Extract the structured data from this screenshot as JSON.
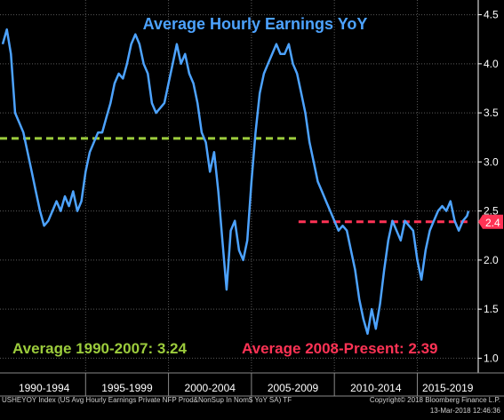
{
  "chart_data": {
    "type": "line",
    "title": "Average Hourly Earnings YoY",
    "ylim": [
      0.85,
      4.65
    ],
    "yticks": [
      1.0,
      1.5,
      2.0,
      2.5,
      3.0,
      3.5,
      4.0,
      4.5
    ],
    "ytick_labels": [
      "1.0",
      "1.5",
      "2.0",
      "2.5",
      "3.0",
      "3.5",
      "4.0",
      "4.5"
    ],
    "x_range": [
      "1990-01",
      "2018-02"
    ],
    "x_bands": [
      {
        "label": "1990-1994",
        "start": "1990-01",
        "end": "1994-12"
      },
      {
        "label": "1995-1999",
        "start": "1995-01",
        "end": "1999-12"
      },
      {
        "label": "2000-2004",
        "start": "2000-01",
        "end": "2004-12"
      },
      {
        "label": "2005-2009",
        "start": "2005-01",
        "end": "2009-12"
      },
      {
        "label": "2010-2014",
        "start": "2010-01",
        "end": "2014-12"
      },
      {
        "label": "2015-2019",
        "start": "2015-01",
        "end": "2018-02"
      }
    ],
    "grid": true,
    "series": [
      {
        "color": "#4da3ff",
        "points": [
          [
            "1990-01",
            4.2
          ],
          [
            "1990-04",
            4.35
          ],
          [
            "1990-07",
            4.1
          ],
          [
            "1990-10",
            3.5
          ],
          [
            "1991-01",
            3.4
          ],
          [
            "1991-04",
            3.3
          ],
          [
            "1991-07",
            3.1
          ],
          [
            "1991-10",
            2.9
          ],
          [
            "1992-01",
            2.7
          ],
          [
            "1992-04",
            2.5
          ],
          [
            "1992-07",
            2.35
          ],
          [
            "1992-10",
            2.4
          ],
          [
            "1993-01",
            2.5
          ],
          [
            "1993-04",
            2.6
          ],
          [
            "1993-07",
            2.5
          ],
          [
            "1993-10",
            2.65
          ],
          [
            "1994-01",
            2.55
          ],
          [
            "1994-04",
            2.7
          ],
          [
            "1994-07",
            2.5
          ],
          [
            "1994-10",
            2.6
          ],
          [
            "1995-01",
            2.9
          ],
          [
            "1995-04",
            3.1
          ],
          [
            "1995-07",
            3.2
          ],
          [
            "1995-10",
            3.3
          ],
          [
            "1996-01",
            3.3
          ],
          [
            "1996-04",
            3.45
          ],
          [
            "1996-07",
            3.6
          ],
          [
            "1996-10",
            3.8
          ],
          [
            "1997-01",
            3.9
          ],
          [
            "1997-04",
            3.85
          ],
          [
            "1997-07",
            4.0
          ],
          [
            "1997-10",
            4.2
          ],
          [
            "1998-01",
            4.3
          ],
          [
            "1998-04",
            4.2
          ],
          [
            "1998-07",
            4.0
          ],
          [
            "1998-10",
            3.9
          ],
          [
            "1999-01",
            3.6
          ],
          [
            "1999-04",
            3.5
          ],
          [
            "1999-07",
            3.55
          ],
          [
            "1999-10",
            3.6
          ],
          [
            "2000-01",
            3.8
          ],
          [
            "2000-04",
            4.0
          ],
          [
            "2000-07",
            4.2
          ],
          [
            "2000-10",
            4.0
          ],
          [
            "2001-01",
            4.1
          ],
          [
            "2001-04",
            3.9
          ],
          [
            "2001-07",
            3.8
          ],
          [
            "2001-10",
            3.6
          ],
          [
            "2002-01",
            3.3
          ],
          [
            "2002-04",
            3.2
          ],
          [
            "2002-07",
            2.9
          ],
          [
            "2002-10",
            3.1
          ],
          [
            "2003-01",
            2.7
          ],
          [
            "2003-04",
            2.2
          ],
          [
            "2003-07",
            1.7
          ],
          [
            "2003-10",
            2.3
          ],
          [
            "2004-01",
            2.4
          ],
          [
            "2004-04",
            2.1
          ],
          [
            "2004-07",
            2.0
          ],
          [
            "2004-10",
            2.2
          ],
          [
            "2005-01",
            2.8
          ],
          [
            "2005-04",
            3.3
          ],
          [
            "2005-07",
            3.7
          ],
          [
            "2005-10",
            3.9
          ],
          [
            "2006-01",
            4.0
          ],
          [
            "2006-04",
            4.1
          ],
          [
            "2006-07",
            4.2
          ],
          [
            "2006-10",
            4.1
          ],
          [
            "2007-01",
            4.1
          ],
          [
            "2007-04",
            4.2
          ],
          [
            "2007-07",
            4.0
          ],
          [
            "2007-10",
            3.9
          ],
          [
            "2008-01",
            3.7
          ],
          [
            "2008-04",
            3.5
          ],
          [
            "2008-07",
            3.2
          ],
          [
            "2008-10",
            3.0
          ],
          [
            "2009-01",
            2.8
          ],
          [
            "2009-04",
            2.7
          ],
          [
            "2009-07",
            2.6
          ],
          [
            "2009-10",
            2.5
          ],
          [
            "2010-01",
            2.4
          ],
          [
            "2010-04",
            2.3
          ],
          [
            "2010-07",
            2.35
          ],
          [
            "2010-10",
            2.3
          ],
          [
            "2011-01",
            2.1
          ],
          [
            "2011-04",
            1.9
          ],
          [
            "2011-07",
            1.6
          ],
          [
            "2011-10",
            1.4
          ],
          [
            "2012-01",
            1.25
          ],
          [
            "2012-04",
            1.5
          ],
          [
            "2012-07",
            1.3
          ],
          [
            "2012-10",
            1.55
          ],
          [
            "2013-01",
            1.9
          ],
          [
            "2013-04",
            2.2
          ],
          [
            "2013-07",
            2.4
          ],
          [
            "2013-10",
            2.3
          ],
          [
            "2014-01",
            2.2
          ],
          [
            "2014-04",
            2.4
          ],
          [
            "2014-07",
            2.35
          ],
          [
            "2014-10",
            2.3
          ],
          [
            "2015-01",
            2.0
          ],
          [
            "2015-04",
            1.8
          ],
          [
            "2015-07",
            2.1
          ],
          [
            "2015-10",
            2.3
          ],
          [
            "2016-01",
            2.4
          ],
          [
            "2016-04",
            2.5
          ],
          [
            "2016-07",
            2.55
          ],
          [
            "2016-10",
            2.5
          ],
          [
            "2017-01",
            2.6
          ],
          [
            "2017-04",
            2.4
          ],
          [
            "2017-07",
            2.3
          ],
          [
            "2017-10",
            2.4
          ],
          [
            "2018-01",
            2.45
          ],
          [
            "2018-02",
            2.5
          ]
        ]
      }
    ],
    "reference_lines": [
      {
        "value": 3.24,
        "start": "1990-01",
        "end": "2007-12",
        "color": "#9ccc3c",
        "label": "Average 1990-2007: 3.24"
      },
      {
        "value": 2.39,
        "start": "2008-01",
        "end": "2018-02",
        "color": "#ff3355",
        "label": "Average 2008-Present: 2.39"
      }
    ],
    "last_value_label": {
      "text": "2.4",
      "value": 2.39,
      "color": "#ff3355"
    },
    "colors": {
      "background": "#000000",
      "grid": "#5a5a5a",
      "axis_text": "#ffffff",
      "title": "#4da3ff"
    }
  },
  "footer": {
    "description": "USHEYOY Index (US Avg Hourly Earnings Private NFP Prod&NonSup In Nom$ YoY SA) TF",
    "copyright": "Copyright© 2018 Bloomberg Finance L.P.",
    "timestamp": "13-Mar-2018 12:46:36"
  }
}
